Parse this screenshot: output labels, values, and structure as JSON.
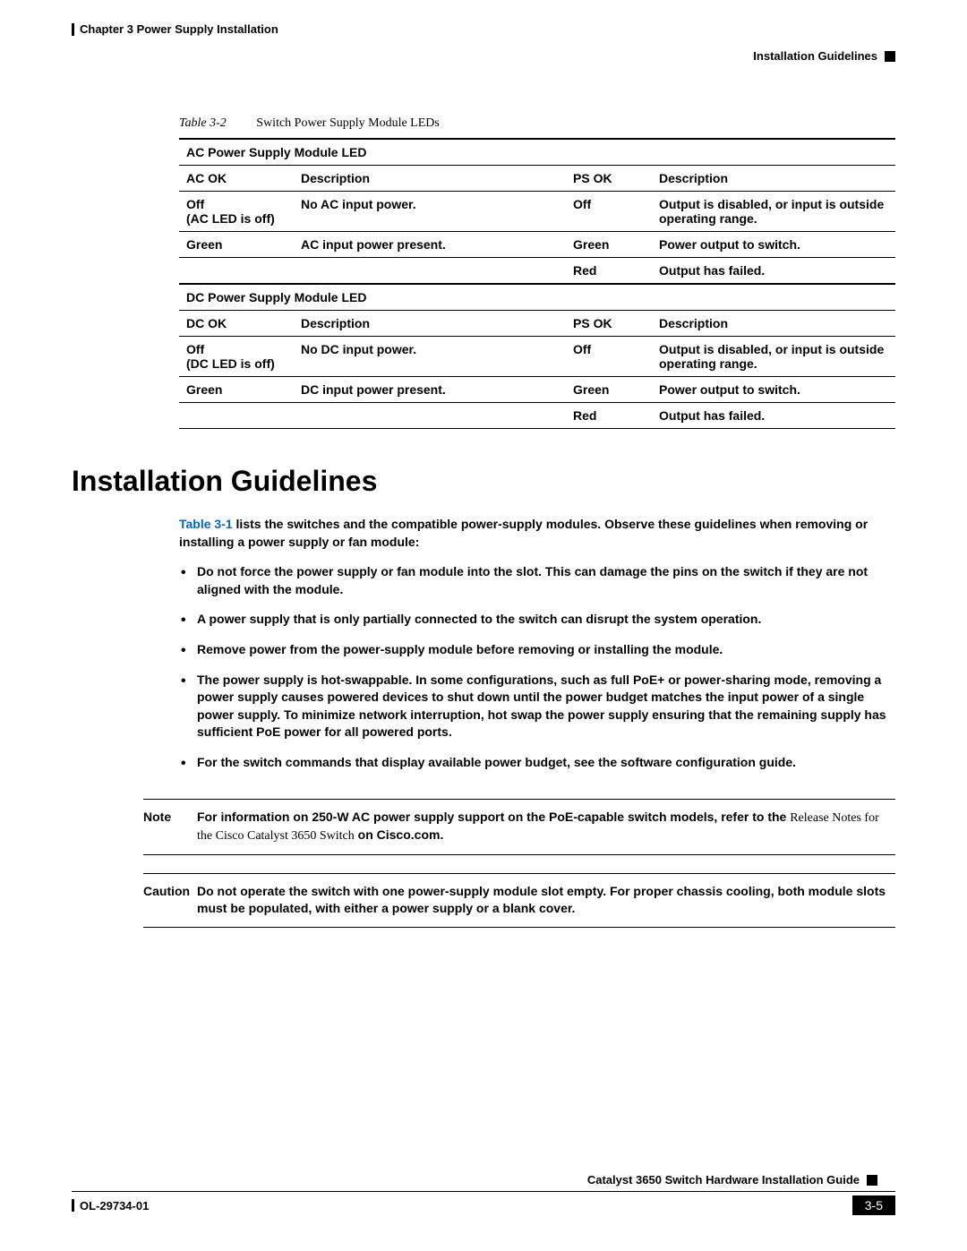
{
  "header": {
    "chapter": "Chapter 3      Power Supply Installation",
    "section": "Installation Guidelines"
  },
  "table": {
    "number": "Table 3-2",
    "title": "Switch Power Supply Module LEDs",
    "ac_section": "AC Power Supply Module LED",
    "dc_section": "DC Power Supply Module LED",
    "cols_ac": {
      "c1": "AC OK",
      "c2": "Description",
      "c3": "PS OK",
      "c4": "Description"
    },
    "cols_dc": {
      "c1": "DC OK",
      "c2": "Description",
      "c3": "PS OK",
      "c4": "Description"
    },
    "ac_rows": [
      {
        "a": "Off\n(AC LED is off)",
        "b": "No AC input power.",
        "c": "Off",
        "d": "Output is disabled, or input is outside operating range."
      },
      {
        "a": "Green",
        "b": "AC input power present.",
        "c": "Green",
        "d": "Power output to switch."
      },
      {
        "a": "",
        "b": "",
        "c": "Red",
        "d": "Output has failed."
      }
    ],
    "dc_rows": [
      {
        "a": "Off\n(DC LED is off)",
        "b": "No DC input power.",
        "c": "Off",
        "d": "Output is disabled, or input is outside operating range."
      },
      {
        "a": "Green",
        "b": "DC input power present.",
        "c": "Green",
        "d": "Power output to switch."
      },
      {
        "a": "",
        "b": "",
        "c": "Red",
        "d": "Output has failed."
      }
    ]
  },
  "heading": "Installation Guidelines",
  "intro": {
    "link": "Table 3-1",
    "rest": " lists the switches and the compatible power-supply modules. Observe these guidelines when removing or installing a power supply or fan module:"
  },
  "bullets": [
    "Do not force the power supply or fan module into the slot. This can damage the pins on the switch if they are not aligned with the module.",
    "A power supply that is only partially connected to the switch can disrupt the system operation.",
    "Remove power from the power-supply module before removing or installing the module.",
    "The power supply is hot-swappable. In some configurations, such as full PoE+ or power-sharing mode, removing a power supply causes powered devices to shut down until the power budget matches the input power of a single power supply. To minimize network interruption, hot swap the power supply ensuring that the remaining supply has sufficient PoE power for all powered ports.",
    "For the switch commands that display available power budget, see the software configuration guide."
  ],
  "note": {
    "label": "Note",
    "text_a": "For information on 250-W AC power supply support on the PoE-capable switch models, refer to the ",
    "text_ital": "Release Notes for the Cisco Catalyst 3650 Switch",
    "text_b": " on Cisco.com."
  },
  "caution": {
    "label": "Caution",
    "text": "Do not operate the switch with one power-supply module slot empty. For proper chassis cooling, both module slots must be populated, with either a power supply or a blank cover."
  },
  "footer": {
    "book": "Catalyst 3650 Switch Hardware Installation Guide",
    "doc": "OL-29734-01",
    "page": "3-5"
  }
}
